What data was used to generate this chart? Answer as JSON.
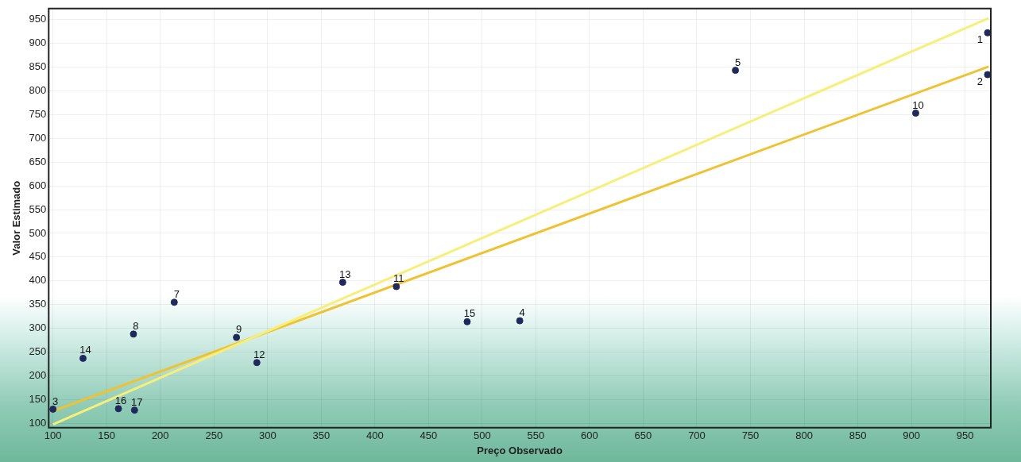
{
  "chart_data": {
    "type": "scatter",
    "xlabel": "Preço Observado",
    "ylabel": "Valor Estimado",
    "xlim": [
      96,
      974
    ],
    "ylim": [
      91,
      973
    ],
    "xticks": [
      100,
      150,
      200,
      250,
      300,
      350,
      400,
      450,
      500,
      550,
      600,
      650,
      700,
      750,
      800,
      850,
      900,
      950
    ],
    "yticks": [
      100,
      150,
      200,
      250,
      300,
      350,
      400,
      450,
      500,
      550,
      600,
      650,
      700,
      750,
      800,
      850,
      900,
      950
    ],
    "grid": true,
    "legend": false,
    "series": [
      {
        "color": "#1f2a5c",
        "marker": "circle",
        "x": [
          971,
          971,
          100,
          535,
          736,
          213,
          175,
          271,
          904,
          420,
          290,
          370,
          128,
          486,
          161,
          176
        ],
        "values": [
          922,
          834,
          130,
          316,
          843,
          355,
          288,
          281,
          753,
          388,
          228,
          397,
          237,
          314,
          131,
          128
        ]
      },
      {
        "type": "line",
        "marker": "none",
        "color": "#f7ef7a",
        "x": [
          100,
          972
        ],
        "values": [
          98,
          953
        ]
      },
      {
        "type": "line",
        "marker": "none",
        "color": "#f0c232",
        "x": [
          100,
          972
        ],
        "values": [
          126,
          851
        ]
      }
    ],
    "annotations": [
      {
        "text": "1",
        "x": 971,
        "y": 922
      },
      {
        "text": "2",
        "x": 971,
        "y": 834
      },
      {
        "text": "3",
        "x": 100,
        "y": 130
      },
      {
        "text": "4",
        "x": 535,
        "y": 316
      },
      {
        "text": "5",
        "x": 736,
        "y": 843
      },
      {
        "text": "7",
        "x": 213,
        "y": 355
      },
      {
        "text": "8",
        "x": 175,
        "y": 288
      },
      {
        "text": "9",
        "x": 271,
        "y": 281
      },
      {
        "text": "10",
        "x": 904,
        "y": 753
      },
      {
        "text": "11",
        "x": 420,
        "y": 388
      },
      {
        "text": "12",
        "x": 290,
        "y": 228
      },
      {
        "text": "13",
        "x": 370,
        "y": 397
      },
      {
        "text": "14",
        "x": 128,
        "y": 237
      },
      {
        "text": "15",
        "x": 486,
        "y": 314
      },
      {
        "text": "16",
        "x": 161,
        "y": 131
      },
      {
        "text": "17",
        "x": 176,
        "y": 128
      }
    ]
  }
}
